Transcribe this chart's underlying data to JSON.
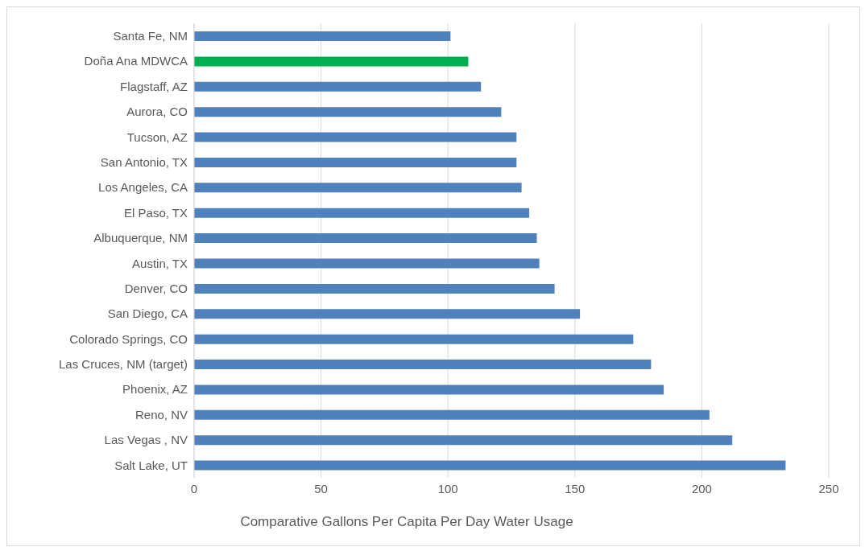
{
  "chart_data": {
    "type": "bar",
    "orientation": "horizontal",
    "xlabel": "Comparative Gallons Per Capita Per Day Water Usage",
    "categories": [
      "Santa Fe, NM",
      "Doña Ana MDWCA",
      "Flagstaff, AZ",
      "Aurora, CO",
      "Tucson, AZ",
      "San Antonio, TX",
      "Los Angeles, CA",
      "El Paso, TX",
      "Albuquerque, NM",
      "Austin, TX",
      "Denver, CO",
      "San Diego, CA",
      "Colorado Springs, CO",
      "Las Cruces, NM (target)",
      "Phoenix, AZ",
      "Reno, NV",
      "Las Vegas , NV",
      "Salt Lake, UT"
    ],
    "values": [
      101,
      108,
      113,
      121,
      127,
      127,
      129,
      132,
      135,
      136,
      142,
      152,
      173,
      180,
      185,
      203,
      212,
      233
    ],
    "colors": [
      "#4f81bd",
      "#00b050",
      "#4f81bd",
      "#4f81bd",
      "#4f81bd",
      "#4f81bd",
      "#4f81bd",
      "#4f81bd",
      "#4f81bd",
      "#4f81bd",
      "#4f81bd",
      "#4f81bd",
      "#4f81bd",
      "#4f81bd",
      "#4f81bd",
      "#4f81bd",
      "#4f81bd",
      "#4f81bd"
    ],
    "xlim": [
      0,
      250
    ],
    "xticks": [
      0,
      50,
      100,
      150,
      200,
      250
    ],
    "grid": "x"
  }
}
